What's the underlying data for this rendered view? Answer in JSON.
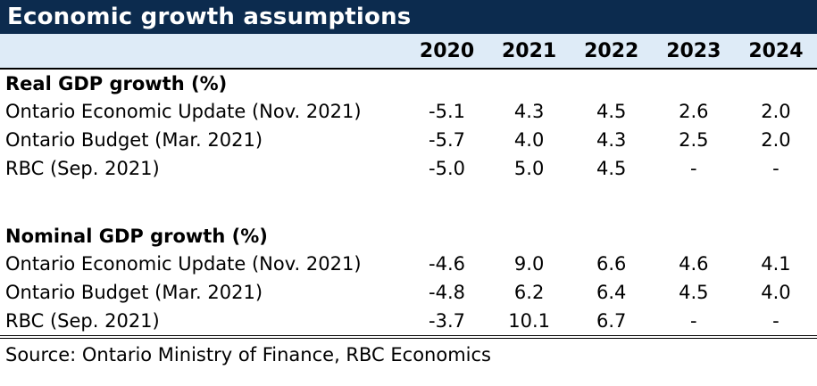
{
  "chart_data": {
    "type": "table",
    "title": "Economic growth assumptions",
    "columns": [
      "2020",
      "2021",
      "2022",
      "2023",
      "2024"
    ],
    "sections": [
      {
        "header": "Real GDP growth (%)",
        "rows": [
          {
            "label": "Ontario Economic Update (Nov. 2021)",
            "values": [
              "-5.1",
              "4.3",
              "4.5",
              "2.6",
              "2.0"
            ]
          },
          {
            "label": "Ontario Budget (Mar. 2021)",
            "values": [
              "-5.7",
              "4.0",
              "4.3",
              "2.5",
              "2.0"
            ]
          },
          {
            "label": "RBC (Sep. 2021)",
            "values": [
              "-5.0",
              "5.0",
              "4.5",
              "-",
              "-"
            ]
          }
        ]
      },
      {
        "header": "Nominal GDP growth (%)",
        "rows": [
          {
            "label": "Ontario Economic Update (Nov. 2021)",
            "values": [
              "-4.6",
              "9.0",
              "6.6",
              "4.6",
              "4.1"
            ]
          },
          {
            "label": "Ontario Budget (Mar. 2021)",
            "values": [
              "-4.8",
              "6.2",
              "6.4",
              "4.5",
              "4.0"
            ]
          },
          {
            "label": "RBC (Sep. 2021)",
            "values": [
              "-3.7",
              "10.1",
              "6.7",
              "-",
              "-"
            ]
          }
        ]
      }
    ],
    "source_note": "Source: Ontario Ministry of Finance, RBC Economics",
    "layout": {
      "grid": "off",
      "legend": "none"
    }
  },
  "colors": {
    "title_bg": "#0c2b4e",
    "title_text": "#ffffff",
    "year_header_bg": "#deebf7",
    "body_text": "#000000",
    "rule_lines": "#000000"
  }
}
